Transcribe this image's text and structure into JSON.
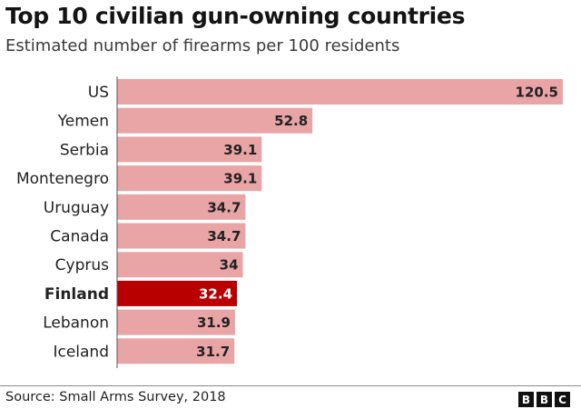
{
  "chart_data": {
    "type": "bar",
    "orientation": "horizontal",
    "title": "Top 10 civilian gun-owning countries",
    "subtitle": "Estimated number of firearms per 100 residents",
    "categories": [
      "US",
      "Yemen",
      "Serbia",
      "Montenegro",
      "Uruguay",
      "Canada",
      "Cyprus",
      "Finland",
      "Lebanon",
      "Iceland"
    ],
    "values": [
      120.5,
      52.8,
      39.1,
      39.1,
      34.7,
      34.7,
      34,
      32.4,
      31.9,
      31.7
    ],
    "value_labels": [
      "120.5",
      "52.8",
      "39.1",
      "39.1",
      "34.7",
      "34.7",
      "34",
      "32.4",
      "31.9",
      "31.7"
    ],
    "highlight": "Finland",
    "xlim": [
      0,
      120.5
    ],
    "grid": false,
    "colors": {
      "bar": "#e9a4a6",
      "highlight": "#b80000"
    }
  },
  "footer": {
    "source": "Source: Small Arms Survey, 2018",
    "logo": [
      "B",
      "B",
      "C"
    ]
  }
}
